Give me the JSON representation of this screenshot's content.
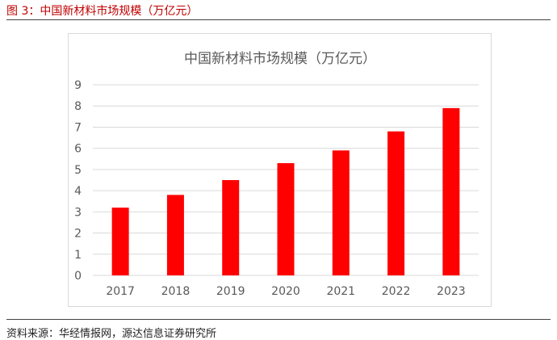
{
  "figure": {
    "caption": "图 3：中国新材料市场规模（万亿元）",
    "source": "资料来源：华经情报网，源达信息证券研究所"
  },
  "colors": {
    "bar": "#ff0000",
    "caption": "#c00000",
    "grid": "#d9d9d9",
    "tick_text": "#595959",
    "title_text": "#595959"
  },
  "chart_data": {
    "type": "bar",
    "title": "中国新材料市场规模（万亿元）",
    "categories": [
      "2017",
      "2018",
      "2019",
      "2020",
      "2021",
      "2022",
      "2023"
    ],
    "values": [
      3.2,
      3.8,
      4.5,
      5.3,
      5.9,
      6.8,
      7.9
    ],
    "ylim": [
      0,
      9
    ],
    "yticks": [
      "0",
      "1",
      "2",
      "3",
      "4",
      "5",
      "6",
      "7",
      "8",
      "9"
    ],
    "grid": true,
    "legend": "none"
  }
}
